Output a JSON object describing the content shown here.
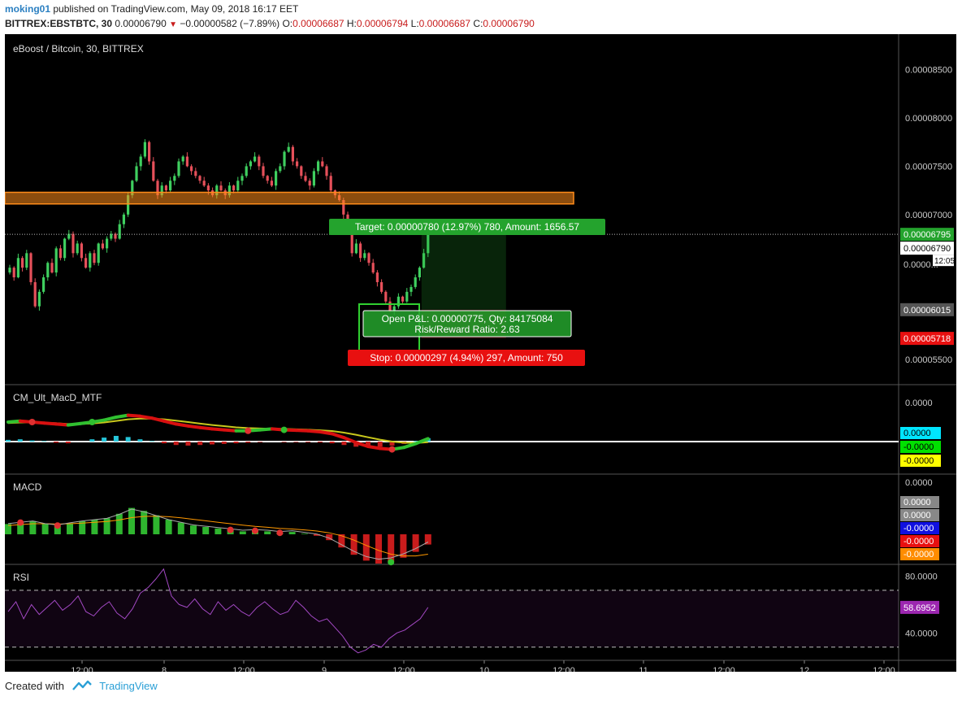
{
  "header": {
    "author": "moking01",
    "published": "published on TradingView.com, May 09, 2018 16:17 EET",
    "symbol": "BITTREX:EBSTBTC, 30",
    "price": "0.00006790",
    "change": "−0.00000582 (−7.89%)",
    "o_label": "O:",
    "o": "0.00006687",
    "h_label": "H:",
    "h": "0.00006794",
    "l_label": "L:",
    "l": "0.00006687",
    "c_label": "C:",
    "c": "0.00006790"
  },
  "footer": {
    "created_with": "Created with",
    "brand": "TradingView"
  },
  "colors": {
    "up": "#3fcf5f",
    "down": "#e6505a",
    "zone": "#ff8c1a",
    "target": "#24a32d",
    "stop": "#e81010",
    "rsi": "#9c27b0"
  },
  "chart_data": [
    {
      "type": "candlestick",
      "title": "eBoost / Bitcoin, 30, BITTREX",
      "y_ticks": [
        "0.00008500",
        "0.00008000",
        "0.00007500",
        "0.00007000",
        "0.00005500"
      ],
      "ylim": [
        5.34e-05,
        8.8e-05
      ],
      "x_ticks": [
        "12:00",
        "8",
        "12:00",
        "9",
        "12:00",
        "10",
        "12:00",
        "11",
        "12:00",
        "12",
        "12:00"
      ],
      "price_labels": {
        "current": "0.00006795",
        "last": "0.00006790",
        "countdown": "12:05",
        "hidden": "0.0000...",
        "entry": "0.00006015",
        "stop": "0.00005718"
      },
      "resistance_zone": [
        7.11e-05,
        7.23e-05
      ],
      "position": {
        "target_label": "Target: 0.00000780 (12.97%) 780, Amount: 1656.57",
        "pnl_label": "Open P&L: 0.00000775, Qty: 84175084",
        "rr_label": "Risk/Reward Ratio: 2.63",
        "stop_label": "Stop: 0.00000297 (4.94%) 297, Amount: 750",
        "entry": 6.015e-05,
        "target": 6.795e-05,
        "stop": 5.718e-05
      },
      "close_series": [
        6.45,
        6.35,
        6.55,
        6.45,
        6.6,
        6.3,
        6.05,
        6.2,
        6.35,
        6.5,
        6.4,
        6.65,
        6.55,
        6.75,
        6.8,
        6.6,
        6.7,
        6.55,
        6.45,
        6.6,
        6.5,
        6.7,
        6.65,
        6.75,
        6.8,
        6.75,
        6.9,
        7.0,
        7.2,
        7.35,
        7.5,
        7.6,
        7.75,
        7.55,
        7.35,
        7.2,
        7.3,
        7.25,
        7.35,
        7.4,
        7.55,
        7.6,
        7.5,
        7.45,
        7.4,
        7.35,
        7.3,
        7.25,
        7.2,
        7.3,
        7.25,
        7.2,
        7.3,
        7.25,
        7.35,
        7.4,
        7.5,
        7.55,
        7.6,
        7.5,
        7.4,
        7.35,
        7.3,
        7.45,
        7.5,
        7.65,
        7.7,
        7.55,
        7.5,
        7.4,
        7.35,
        7.3,
        7.45,
        7.55,
        7.5,
        7.4,
        7.25,
        7.2,
        7.15,
        7.0,
        6.85,
        6.6,
        6.7,
        6.55,
        6.6,
        6.5,
        6.4,
        6.3,
        6.2,
        6.1,
        6.0,
        6.05,
        6.15,
        6.1,
        6.2,
        6.25,
        6.35,
        6.45,
        6.6,
        6.79
      ]
    },
    {
      "type": "line",
      "title": "CM_Ult_MacD_MTF",
      "y_ticks": [
        "0.0000"
      ],
      "labels": [
        "0.0000",
        "-0.0000",
        "-0.0000"
      ],
      "macd": [
        0.5,
        0.55,
        0.5,
        0.45,
        0.4,
        0.35,
        0.42,
        0.5,
        0.6,
        0.75,
        0.85,
        0.8,
        0.7,
        0.55,
        0.4,
        0.3,
        0.22,
        0.15,
        0.1,
        0.05,
        0.05,
        0.1,
        0.15,
        0.1,
        0.08,
        0.05,
        0.0,
        -0.1,
        -0.3,
        -0.55,
        -0.75,
        -0.85,
        -0.9,
        -0.8,
        -0.6,
        -0.35
      ],
      "signal": [
        0.45,
        0.48,
        0.49,
        0.47,
        0.44,
        0.4,
        0.4,
        0.43,
        0.48,
        0.56,
        0.64,
        0.68,
        0.68,
        0.64,
        0.57,
        0.5,
        0.42,
        0.35,
        0.29,
        0.23,
        0.19,
        0.17,
        0.16,
        0.15,
        0.13,
        0.11,
        0.08,
        0.04,
        -0.04,
        -0.15,
        -0.28,
        -0.4,
        -0.5,
        -0.56,
        -0.57,
        -0.53
      ],
      "hist": [
        0.15,
        0.2,
        0.1,
        0.05,
        -0.1,
        -0.15,
        0.0,
        0.2,
        0.35,
        0.5,
        0.4,
        0.2,
        0.05,
        -0.15,
        -0.3,
        -0.35,
        -0.3,
        -0.25,
        -0.2,
        -0.15,
        -0.1,
        -0.05,
        0.0,
        -0.05,
        -0.05,
        -0.06,
        -0.08,
        -0.15,
        -0.3,
        -0.45,
        -0.5,
        -0.45,
        -0.35,
        -0.2,
        0.05,
        0.3
      ]
    },
    {
      "type": "bar",
      "title": "MACD",
      "y_ticks": [
        "0.0000"
      ],
      "labels": [
        "0.0000",
        "0.0000",
        "-0.0000",
        "-0.0000",
        "-0.0000"
      ],
      "hist": [
        0.35,
        0.4,
        0.45,
        0.35,
        0.3,
        0.38,
        0.45,
        0.5,
        0.55,
        0.7,
        0.9,
        0.8,
        0.65,
        0.5,
        0.4,
        0.3,
        0.25,
        0.2,
        0.15,
        0.1,
        0.12,
        0.1,
        0.05,
        0.08,
        0.02,
        -0.05,
        -0.2,
        -0.45,
        -0.7,
        -0.9,
        -1.0,
        -0.95,
        -0.8,
        -0.6,
        -0.35
      ],
      "signal": [
        0.3,
        0.33,
        0.36,
        0.36,
        0.35,
        0.36,
        0.38,
        0.41,
        0.44,
        0.49,
        0.57,
        0.61,
        0.62,
        0.6,
        0.56,
        0.51,
        0.46,
        0.41,
        0.36,
        0.31,
        0.27,
        0.24,
        0.2,
        0.18,
        0.15,
        0.11,
        0.05,
        -0.05,
        -0.2,
        -0.38,
        -0.55,
        -0.68,
        -0.74,
        -0.74,
        -0.68
      ]
    },
    {
      "type": "line",
      "title": "RSI",
      "y_ticks": [
        "80.0000",
        "40.0000"
      ],
      "ylim": [
        23,
        86
      ],
      "last_label": "58.6952",
      "bands": [
        70,
        30
      ],
      "values": [
        55,
        62,
        50,
        60,
        53,
        58,
        63,
        56,
        60,
        66,
        55,
        52,
        58,
        62,
        54,
        50,
        57,
        68,
        72,
        78,
        85,
        66,
        60,
        58,
        64,
        57,
        53,
        62,
        56,
        60,
        55,
        52,
        58,
        62,
        57,
        53,
        55,
        63,
        58,
        52,
        48,
        50,
        44,
        38,
        30,
        26,
        28,
        32,
        30,
        36,
        40,
        42,
        46,
        50,
        58
      ]
    }
  ]
}
